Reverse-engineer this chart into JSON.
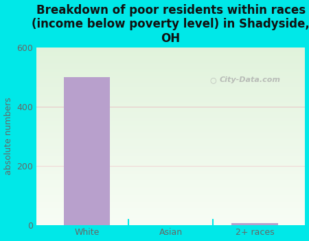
{
  "categories": [
    "White",
    "Asian",
    "2+ races"
  ],
  "values": [
    500,
    0,
    5
  ],
  "bar_color": "#b8a0cc",
  "title": "Breakdown of poor residents within races\n(income below poverty level) in Shadyside,\nOH",
  "ylabel": "absolute numbers",
  "ylim": [
    0,
    600
  ],
  "yticks": [
    0,
    200,
    400,
    600
  ],
  "bg_outer": "#00e8e8",
  "watermark": "City-Data.com",
  "title_fontsize": 12,
  "ylabel_fontsize": 9,
  "tick_fontsize": 9,
  "bar_width": 0.55,
  "label_color": "#666666",
  "grid_color_400": "#e8d0d0",
  "grid_color_200": "#f0e0e0"
}
